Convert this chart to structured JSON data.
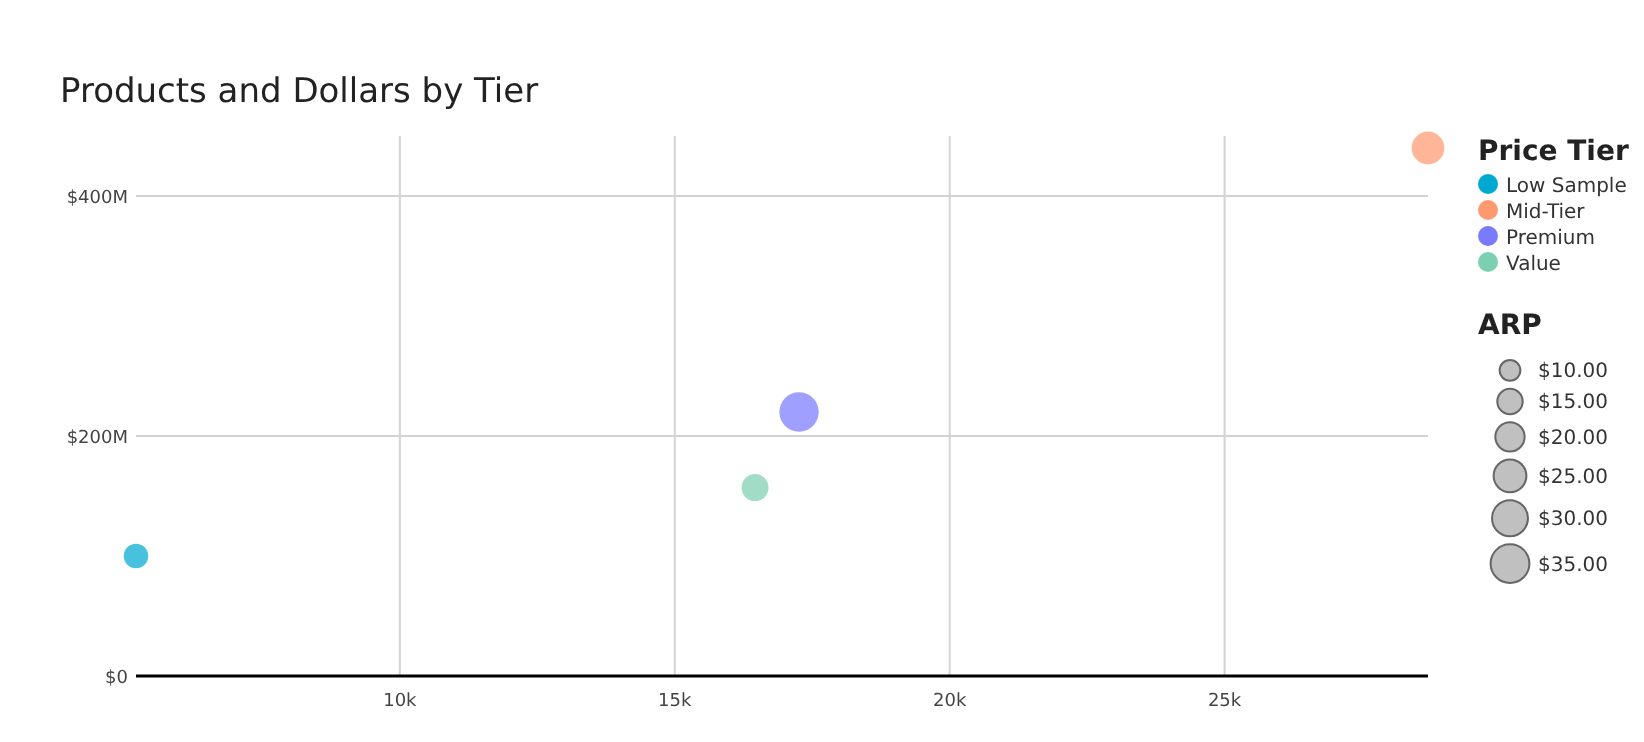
{
  "chart_data": {
    "type": "bubble",
    "title": "Products and Dollars by Tier",
    "legend_title": "Price Tier",
    "annotations": [
      "ARP"
    ],
    "series": [
      {
        "name": "Low Sample",
        "color": "#00a9d0",
        "x": [
          5.2
        ],
        "values": [
          100
        ],
        "sizes": [
          14
        ]
      },
      {
        "name": "Mid-Tier",
        "color": "#ff9a70",
        "x": [
          28.7
        ],
        "values": [
          440
        ],
        "sizes": [
          25
        ]
      },
      {
        "name": "Premium",
        "color": "#7a7aff",
        "x": [
          17.26
        ],
        "values": [
          220
        ],
        "sizes": [
          36
        ]
      },
      {
        "name": "Value",
        "color": "#7ccfb0",
        "x": [
          16.46
        ],
        "values": [
          157
        ],
        "sizes": [
          17
        ]
      }
    ],
    "size_legend": [
      {
        "value": 10,
        "label": "$10.00"
      },
      {
        "value": 15,
        "label": "$15.00"
      },
      {
        "value": 20,
        "label": "$20.00"
      },
      {
        "value": 25,
        "label": "$25.00"
      },
      {
        "value": 30,
        "label": "$30.00"
      },
      {
        "value": 35,
        "label": "$35.00"
      }
    ],
    "xlim": [
      5.2,
      28.7
    ],
    "xticks": [
      {
        "value": 10,
        "label": "10k"
      },
      {
        "value": 15,
        "label": "15k"
      },
      {
        "value": 20,
        "label": "20k"
      },
      {
        "value": 25,
        "label": "25k"
      }
    ],
    "ylim": [
      0,
      450
    ],
    "yticks": [
      {
        "value": 0,
        "label": "$0"
      },
      {
        "value": 200,
        "label": "$200M"
      },
      {
        "value": 400,
        "label": "$400M"
      }
    ],
    "grid": true,
    "legend": "right",
    "marker": "circle"
  }
}
